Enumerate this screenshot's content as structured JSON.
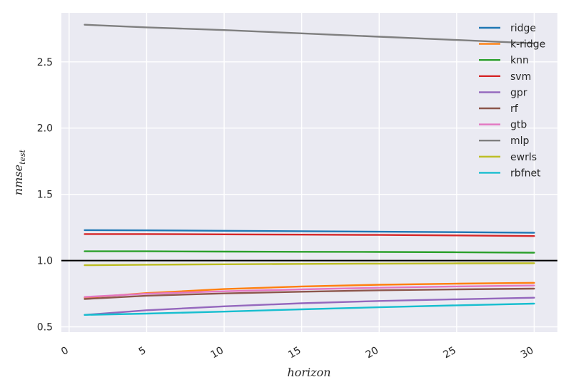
{
  "chart_data": {
    "type": "line",
    "xlabel": "horizon",
    "ylabel": "nmse",
    "ylabel_sub": "test",
    "xlim": [
      -0.5,
      31.5
    ],
    "ylim": [
      0.46,
      2.87
    ],
    "xticks": [
      0,
      5,
      10,
      15,
      20,
      25,
      30
    ],
    "yticks": [
      0.5,
      1.0,
      1.5,
      2.0,
      2.5
    ],
    "ytick_labels": [
      "0.5",
      "1.0",
      "1.5",
      "2.0",
      "2.5"
    ],
    "grid": true,
    "legend_position": "top-right",
    "reference_line": {
      "y": 1.0,
      "color": "#000000"
    },
    "x": [
      1,
      5,
      10,
      15,
      20,
      25,
      30
    ],
    "series": [
      {
        "name": "ridge",
        "color": "#1f77b4",
        "values": [
          1.23,
          1.228,
          1.225,
          1.222,
          1.218,
          1.215,
          1.21
        ]
      },
      {
        "name": "k-ridge",
        "color": "#ff7f0e",
        "values": [
          0.72,
          0.755,
          0.785,
          0.805,
          0.818,
          0.826,
          0.832
        ]
      },
      {
        "name": "knn",
        "color": "#2ca02c",
        "values": [
          1.07,
          1.07,
          1.068,
          1.066,
          1.065,
          1.063,
          1.06
        ]
      },
      {
        "name": "svm",
        "color": "#d62728",
        "values": [
          1.2,
          1.2,
          1.198,
          1.196,
          1.194,
          1.19,
          1.185
        ]
      },
      {
        "name": "gpr",
        "color": "#9467bd",
        "values": [
          0.59,
          0.625,
          0.655,
          0.678,
          0.695,
          0.708,
          0.72
        ]
      },
      {
        "name": "rf",
        "color": "#8c564b",
        "values": [
          0.71,
          0.735,
          0.752,
          0.765,
          0.776,
          0.783,
          0.788
        ]
      },
      {
        "name": "gtb",
        "color": "#e377c2",
        "values": [
          0.725,
          0.75,
          0.768,
          0.783,
          0.795,
          0.805,
          0.812
        ]
      },
      {
        "name": "mlp",
        "color": "#7f7f7f",
        "values": [
          2.78,
          2.76,
          2.74,
          2.715,
          2.69,
          2.665,
          2.64
        ]
      },
      {
        "name": "ewrls",
        "color": "#bcbd22",
        "values": [
          0.965,
          0.969,
          0.972,
          0.975,
          0.977,
          0.979,
          0.98
        ]
      },
      {
        "name": "rbfnet",
        "color": "#17becf",
        "values": [
          0.59,
          0.6,
          0.615,
          0.632,
          0.648,
          0.662,
          0.675
        ]
      }
    ]
  }
}
